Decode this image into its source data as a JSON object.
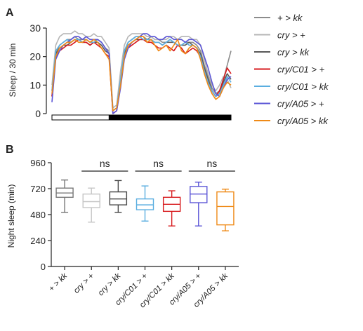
{
  "figure": {
    "panels": [
      "A",
      "B"
    ]
  },
  "legend_a": [
    {
      "label": "+ > kk",
      "color": "#8c8c8c"
    },
    {
      "label": "cry > +",
      "color": "#b5b5b5"
    },
    {
      "label": "cry > kk",
      "color": "#595959"
    },
    {
      "label": "cry/C01 > +",
      "color": "#d7191c"
    },
    {
      "label": "cry/C01 > kk",
      "color": "#5aaee0"
    },
    {
      "label": "cry/A05 > +",
      "color": "#5b55d6"
    },
    {
      "label": "cry/A05 > kk",
      "color": "#ef8a17"
    }
  ],
  "chart_data": [
    {
      "panel": "A",
      "type": "line",
      "title": "",
      "xlabel": "",
      "ylabel": "Sleep / 30 min",
      "ylim": [
        0,
        30
      ],
      "yticks": [
        0,
        10,
        20,
        30
      ],
      "xlim": [
        0,
        47
      ],
      "light_dark_bar": [
        {
          "state": "light",
          "from": 0,
          "to": 15
        },
        {
          "state": "dark",
          "from": 15,
          "to": 47
        }
      ],
      "x": [
        0,
        1,
        2,
        3,
        4,
        5,
        6,
        7,
        8,
        9,
        10,
        11,
        12,
        13,
        14,
        15,
        16,
        17,
        18,
        19,
        20,
        21,
        22,
        23,
        24,
        25,
        26,
        27,
        28,
        29,
        30,
        31,
        32,
        33,
        34,
        35,
        36,
        37,
        38,
        39,
        40,
        41,
        42,
        43,
        44,
        45,
        46,
        47
      ],
      "series": [
        {
          "name": "+ > kk",
          "values": [
            8,
            21,
            24,
            25,
            26,
            26,
            27,
            26,
            26,
            26,
            25,
            26,
            26,
            25,
            23,
            22,
            1,
            2,
            12,
            22,
            25,
            26,
            27,
            27,
            27,
            26,
            27,
            26,
            26,
            25,
            25,
            26,
            25,
            24,
            24,
            25,
            25,
            25,
            24,
            22,
            17,
            13,
            9,
            7,
            8,
            12,
            17,
            22
          ]
        },
        {
          "name": "cry > +",
          "values": [
            10,
            24,
            27,
            28,
            28,
            28,
            29,
            28,
            28,
            27,
            27,
            28,
            27,
            27,
            25,
            23,
            2,
            3,
            15,
            24,
            27,
            28,
            28,
            28,
            28,
            27,
            27,
            26,
            26,
            26,
            26,
            27,
            27,
            26,
            27,
            27,
            27,
            26,
            26,
            24,
            19,
            14,
            10,
            8,
            10,
            13,
            12,
            9
          ]
        },
        {
          "name": "cry > kk",
          "values": [
            6,
            21,
            23,
            24,
            24,
            25,
            26,
            26,
            25,
            25,
            24,
            25,
            25,
            24,
            22,
            21,
            1,
            2,
            11,
            21,
            24,
            25,
            26,
            26,
            26,
            26,
            26,
            25,
            25,
            24,
            25,
            25,
            25,
            24,
            24,
            24,
            25,
            24,
            23,
            21,
            16,
            12,
            8,
            6,
            7,
            11,
            14,
            12
          ]
        },
        {
          "name": "cry/C01 > +",
          "values": [
            6,
            20,
            22,
            23,
            24,
            24,
            25,
            26,
            25,
            25,
            24,
            25,
            24,
            23,
            21,
            20,
            0,
            1,
            10,
            20,
            23,
            24,
            25,
            26,
            26,
            25,
            25,
            24,
            23,
            23,
            24,
            23,
            22,
            24,
            23,
            21,
            22,
            23,
            22,
            20,
            15,
            11,
            8,
            6,
            8,
            12,
            16,
            14
          ]
        },
        {
          "name": "cry/C01 > kk",
          "values": [
            8,
            22,
            24,
            25,
            26,
            25,
            26,
            26,
            25,
            26,
            25,
            25,
            26,
            25,
            23,
            21,
            1,
            2,
            12,
            22,
            25,
            26,
            27,
            27,
            26,
            26,
            26,
            25,
            25,
            24,
            25,
            26,
            25,
            24,
            24,
            25,
            24,
            24,
            23,
            20,
            15,
            11,
            8,
            6,
            7,
            10,
            13,
            11
          ]
        },
        {
          "name": "cry/A05 > +",
          "values": [
            4,
            19,
            22,
            24,
            25,
            26,
            27,
            27,
            26,
            27,
            26,
            26,
            26,
            25,
            23,
            21,
            0,
            1,
            9,
            19,
            23,
            25,
            26,
            27,
            28,
            28,
            27,
            27,
            26,
            26,
            27,
            27,
            26,
            26,
            26,
            25,
            26,
            26,
            25,
            24,
            20,
            16,
            11,
            7,
            6,
            9,
            12,
            13
          ]
        },
        {
          "name": "cry/A05 > kk",
          "values": [
            7,
            20,
            23,
            24,
            25,
            25,
            26,
            25,
            25,
            26,
            25,
            26,
            25,
            23,
            21,
            19,
            1,
            2,
            10,
            20,
            24,
            25,
            26,
            27,
            27,
            25,
            26,
            24,
            22,
            23,
            24,
            22,
            24,
            26,
            22,
            21,
            23,
            24,
            23,
            19,
            14,
            10,
            7,
            5,
            6,
            9,
            11,
            10
          ]
        }
      ]
    },
    {
      "panel": "B",
      "type": "box",
      "title": "",
      "xlabel": "",
      "ylabel": "Night sleep (min)",
      "ylim": [
        0,
        960
      ],
      "yticks": [
        0,
        240,
        480,
        720,
        960
      ],
      "categories": [
        "+ > kk",
        "cry > +",
        "cry > kk",
        "cry/C01 > +",
        "cry/C01 > kk",
        "cry/A05 > +",
        "cry/A05 > kk"
      ],
      "colors": [
        "#777777",
        "#c6c6c6",
        "#4a4a4a",
        "#5aaee0",
        "#d7191c",
        "#5b55d6",
        "#ef8a17"
      ],
      "boxes": [
        {
          "min": 500,
          "q1": 640,
          "median": 680,
          "q3": 725,
          "max": 800
        },
        {
          "min": 410,
          "q1": 545,
          "median": 600,
          "q3": 670,
          "max": 725
        },
        {
          "min": 500,
          "q1": 570,
          "median": 625,
          "q3": 690,
          "max": 795
        },
        {
          "min": 420,
          "q1": 525,
          "median": 570,
          "q3": 625,
          "max": 745
        },
        {
          "min": 375,
          "q1": 510,
          "median": 575,
          "q3": 640,
          "max": 700
        },
        {
          "min": 375,
          "q1": 590,
          "median": 670,
          "q3": 740,
          "max": 780
        },
        {
          "min": 330,
          "q1": 385,
          "median": 555,
          "q3": 690,
          "max": 715
        }
      ],
      "significance": [
        {
          "from": 1,
          "to": 2,
          "label": "ns"
        },
        {
          "from": 3,
          "to": 4,
          "label": "ns"
        },
        {
          "from": 5,
          "to": 6,
          "label": "ns"
        }
      ]
    }
  ]
}
